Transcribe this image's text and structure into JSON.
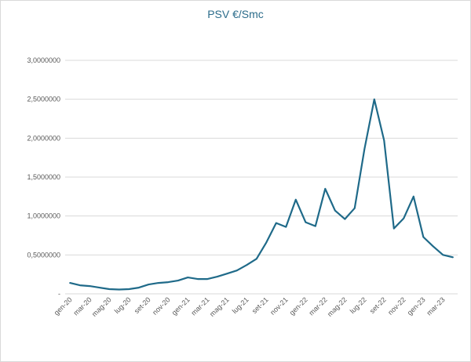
{
  "chart_data": {
    "type": "line",
    "title": "PSV €/Smc",
    "xlabel": "",
    "ylabel": "",
    "ylim": [
      0,
      3.0
    ],
    "grid": true,
    "y_tick_labels": [
      "-",
      "0,5000000",
      "1,0000000",
      "1,5000000",
      "2,0000000",
      "2,5000000",
      "3,0000000"
    ],
    "x_tick_labels": [
      "gen-20",
      "mar-20",
      "mag-20",
      "lug-20",
      "set-20",
      "nov-20",
      "gen-21",
      "mar-21",
      "mag-21",
      "lug-21",
      "set-21",
      "nov-21",
      "gen-22",
      "mar-22",
      "mag-22",
      "lug-22",
      "set-22",
      "nov-22",
      "gen-23",
      "mar-23"
    ],
    "line_color": "#1f6a89",
    "x": [
      "gen-20",
      "feb-20",
      "mar-20",
      "apr-20",
      "mag-20",
      "giu-20",
      "lug-20",
      "ago-20",
      "set-20",
      "ott-20",
      "nov-20",
      "dic-20",
      "gen-21",
      "feb-21",
      "mar-21",
      "apr-21",
      "mag-21",
      "giu-21",
      "lug-21",
      "ago-21",
      "set-21",
      "ott-21",
      "nov-21",
      "dic-21",
      "gen-22",
      "feb-22",
      "mar-22",
      "apr-22",
      "mag-22",
      "giu-22",
      "lug-22",
      "ago-22",
      "set-22",
      "ott-22",
      "nov-22",
      "dic-22",
      "gen-23",
      "feb-23",
      "mar-23",
      "apr-23"
    ],
    "series": [
      {
        "values": [
          0.14,
          0.11,
          0.1,
          0.08,
          0.06,
          0.055,
          0.06,
          0.08,
          0.12,
          0.14,
          0.15,
          0.17,
          0.21,
          0.19,
          0.19,
          0.22,
          0.26,
          0.3,
          0.37,
          0.45,
          0.66,
          0.91,
          0.86,
          1.21,
          0.92,
          0.87,
          1.35,
          1.07,
          0.96,
          1.1,
          1.86,
          2.5,
          1.97,
          0.84,
          0.97,
          1.25,
          0.73,
          0.61,
          0.5,
          0.47
        ]
      }
    ]
  }
}
